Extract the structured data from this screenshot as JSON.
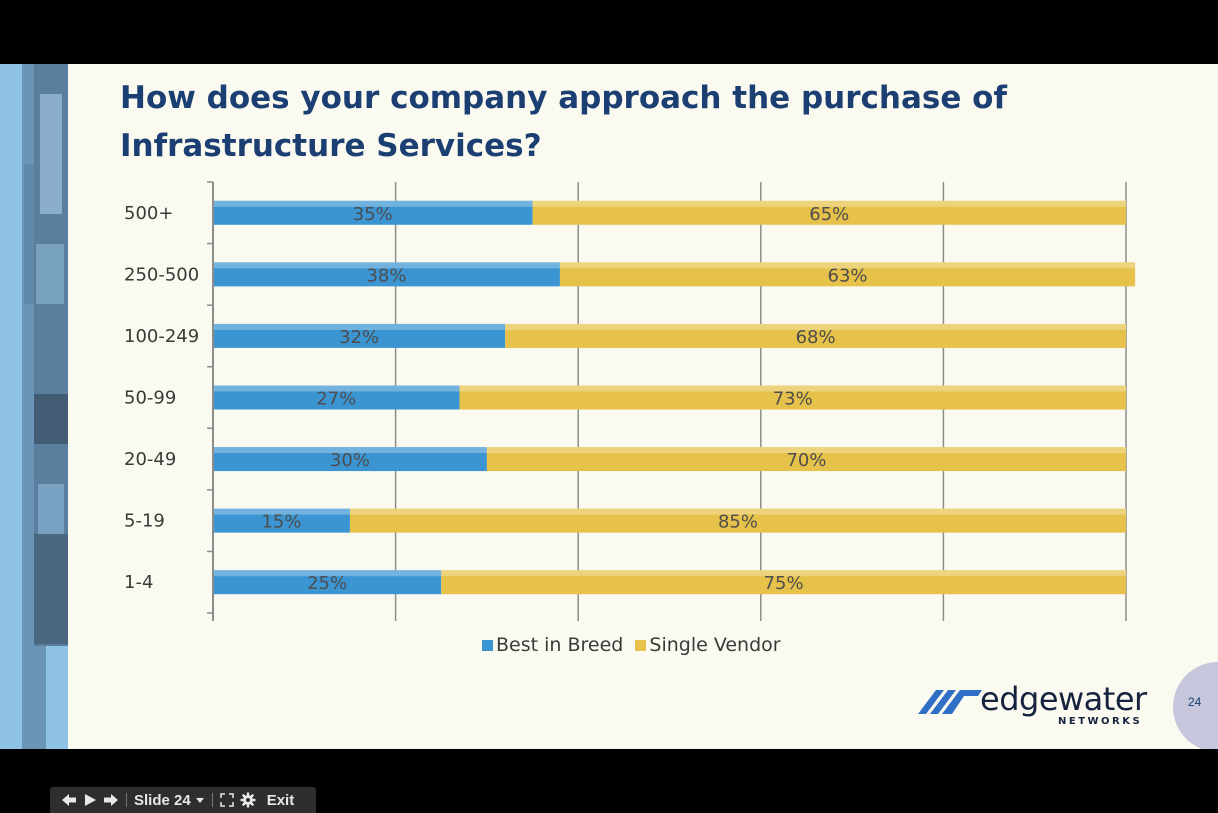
{
  "slide": {
    "title": "How does your company approach the purchase of Infrastructure Services?",
    "page_number": "24"
  },
  "chart_data": {
    "type": "bar",
    "orientation": "horizontal",
    "stacked": true,
    "title": "How does your company approach the purchase of Infrastructure Services?",
    "categories": [
      "500+",
      "250-500",
      "100-249",
      "50-99",
      "20-49",
      "5-19",
      "1-4"
    ],
    "series": [
      {
        "name": "Best in Breed",
        "values": [
          35,
          38,
          32,
          27,
          30,
          15,
          25
        ],
        "labels": [
          "35%",
          "38%",
          "32%",
          "27%",
          "30%",
          "15%",
          "25%"
        ],
        "color": "#3b95d3"
      },
      {
        "name": "Single Vendor",
        "values": [
          65,
          63,
          68,
          73,
          70,
          85,
          75
        ],
        "labels": [
          "65%",
          "63%",
          "68%",
          "73%",
          "70%",
          "85%",
          "75%"
        ],
        "color": "#e6c24a"
      }
    ],
    "xlim": [
      0,
      100
    ],
    "grid": true,
    "legend": "bottom"
  },
  "legend": {
    "best": "Best in Breed",
    "single": "Single Vendor"
  },
  "logo": {
    "name": "edgewater",
    "sub": "NETWORKS"
  },
  "toolbar": {
    "slide_label": "Slide 24",
    "exit_label": "Exit",
    "icons": [
      "back-arrow-icon",
      "play-icon",
      "forward-arrow-icon",
      "dropdown-caret-icon",
      "fullscreen-icon",
      "gear-icon"
    ]
  },
  "colors": {
    "title": "#1b3f72",
    "best_in_breed": "#3b95d3",
    "single_vendor": "#e6c24a",
    "background": "#fbfaf0"
  }
}
